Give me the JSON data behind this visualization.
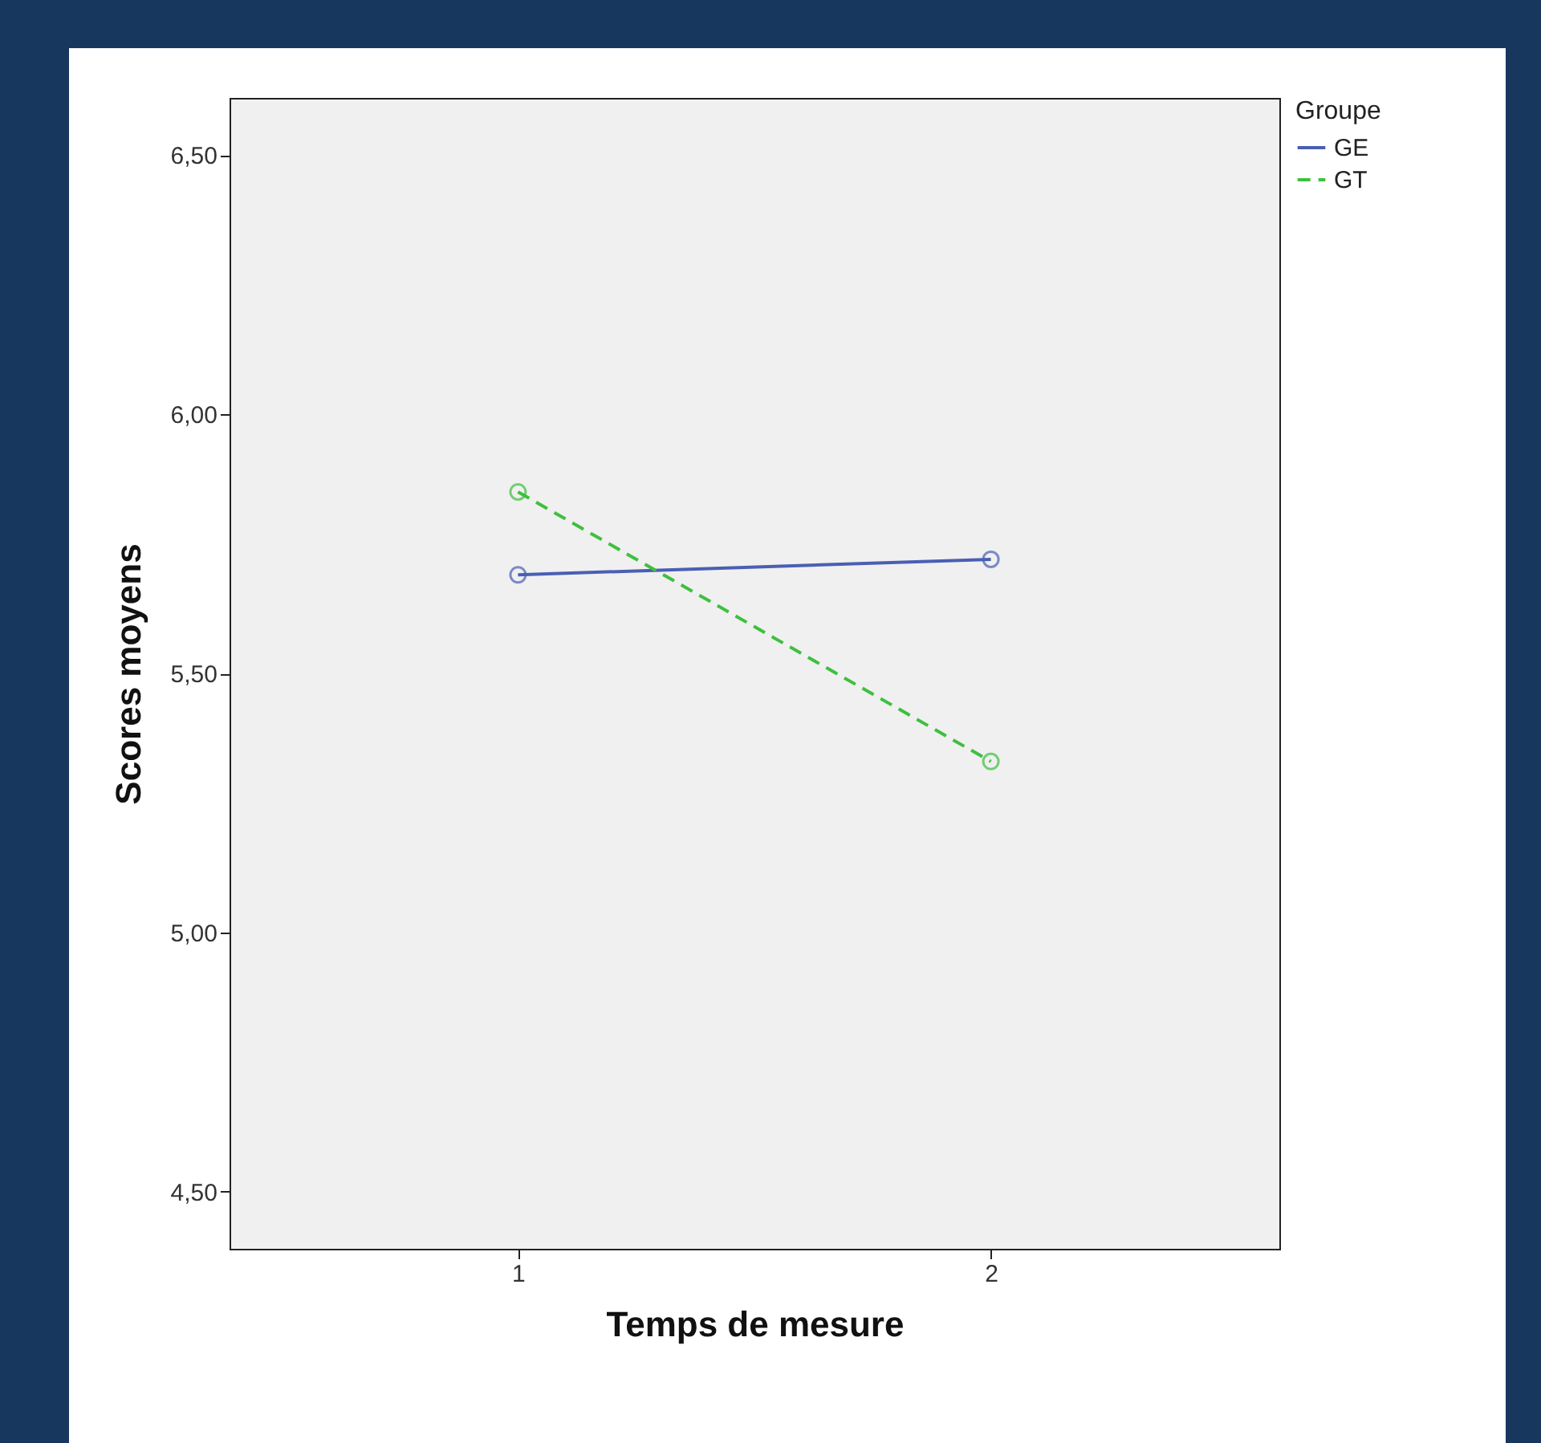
{
  "chart_data": {
    "type": "line",
    "xlabel": "Temps de mesure",
    "ylabel": "Scores moyens",
    "legend_title": "Groupe",
    "x": [
      1,
      2
    ],
    "series": [
      {
        "name": "GE",
        "color": "#4a5fb3",
        "values": [
          5.69,
          5.72
        ],
        "line_style": "solid"
      },
      {
        "name": "GT",
        "color": "#3fbf3f",
        "values": [
          5.85,
          5.33
        ],
        "line_style": "dashed"
      }
    ],
    "xlim": [
      0.39,
      2.61
    ],
    "xticks": [
      1,
      2
    ],
    "ylim": [
      4.39,
      6.61
    ],
    "yticks": [
      {
        "value": 4.5,
        "label": "4,50"
      },
      {
        "value": 5,
        "label": "5,00"
      },
      {
        "value": 5.5,
        "label": "5,50"
      },
      {
        "value": 6,
        "label": "6,00"
      },
      {
        "value": 6.5,
        "label": "6,50"
      }
    ],
    "marker": "circle",
    "grid": false,
    "legend": "top right"
  }
}
